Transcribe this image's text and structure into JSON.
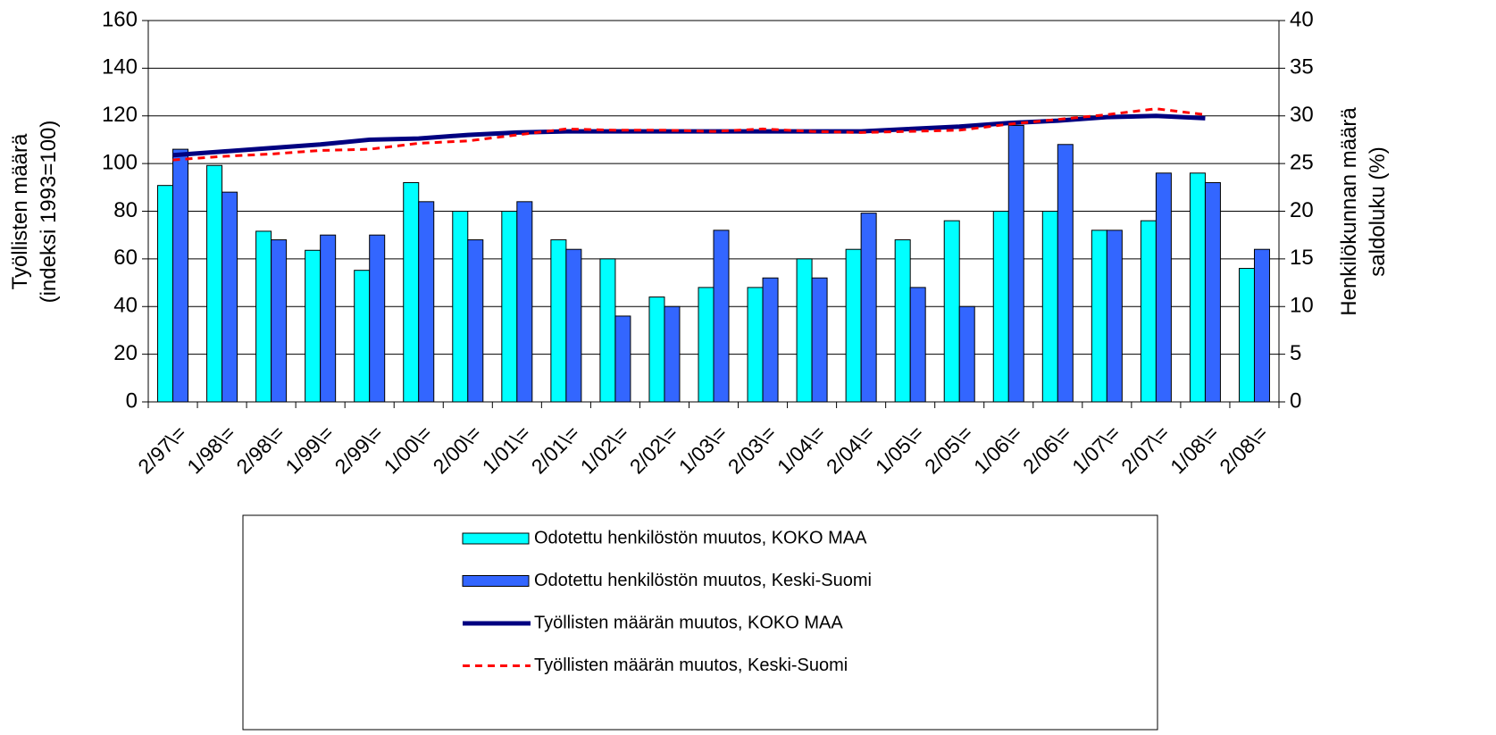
{
  "chart_data": {
    "type": "bar-line",
    "y_label": [
      "Työllisten määrä",
      "(indeksi 1993=100)"
    ],
    "y2_label": [
      "Henkilökunnan määrä",
      "saldoluku (%)"
    ],
    "categories": [
      "2/97\\=",
      "1/98\\=",
      "2/98\\=",
      "1/99\\=",
      "2/99\\=",
      "1/00\\=",
      "2/00\\=",
      "1/01\\=",
      "2/01\\=",
      "1/02\\=",
      "2/02\\=",
      "1/03\\=",
      "2/03\\=",
      "1/04\\=",
      "2/04\\=",
      "1/05\\=",
      "2/05\\=",
      "1/06\\=",
      "2/06\\=",
      "1/07\\=",
      "2/07\\=",
      "1/08\\=",
      "2/08\\="
    ],
    "series": [
      {
        "name": "Odotettu henkilöstön muutos, KOKO MAA",
        "color": "#00ffff",
        "kind": "bar",
        "axis": "y2",
        "values": [
          22.7,
          24.8,
          17.9,
          15.9,
          13.8,
          23,
          20,
          20,
          17,
          15,
          11,
          12,
          12,
          15,
          16,
          17,
          19,
          20,
          20,
          18,
          19,
          24,
          14
        ]
      },
      {
        "name": "Odotettu henkilöstön muutos, Keski-Suomi",
        "color": "#3366ff",
        "kind": "bar",
        "axis": "y2",
        "values": [
          26.5,
          22,
          17,
          17.5,
          17.5,
          21,
          17,
          21,
          16,
          9,
          10,
          18,
          13,
          13,
          19.8,
          12,
          10,
          29,
          27,
          18,
          24,
          23,
          16
        ]
      },
      {
        "name": "Työllisten määrän muutos, KOKO MAA",
        "color": "#000080",
        "kind": "line",
        "axis": "y",
        "values": [
          103.5,
          105,
          106.5,
          108,
          110,
          110.5,
          112,
          113,
          113.5,
          113.5,
          113.5,
          113.5,
          113.5,
          113.5,
          113.5,
          114.5,
          115.5,
          117,
          118,
          119.5,
          120,
          119,
          null
        ]
      },
      {
        "name": "Työllisten määrän muutos, Keski-Suomi",
        "color": "#ff0000",
        "kind": "line",
        "dashed": true,
        "axis": "y",
        "values": [
          101.5,
          103,
          104,
          105.5,
          106,
          108.5,
          109.5,
          112,
          114.5,
          114,
          114,
          113.5,
          114.5,
          113.5,
          113,
          113.5,
          114,
          116.5,
          118.5,
          120.5,
          123,
          120.5,
          null
        ]
      }
    ],
    "ylim": [
      0,
      160
    ],
    "yticks": [
      0,
      20,
      40,
      60,
      80,
      100,
      120,
      140,
      160
    ],
    "y2lim": [
      0,
      40
    ],
    "y2ticks": [
      0,
      5,
      10,
      15,
      20,
      25,
      30,
      35,
      40
    ],
    "grid": true
  }
}
